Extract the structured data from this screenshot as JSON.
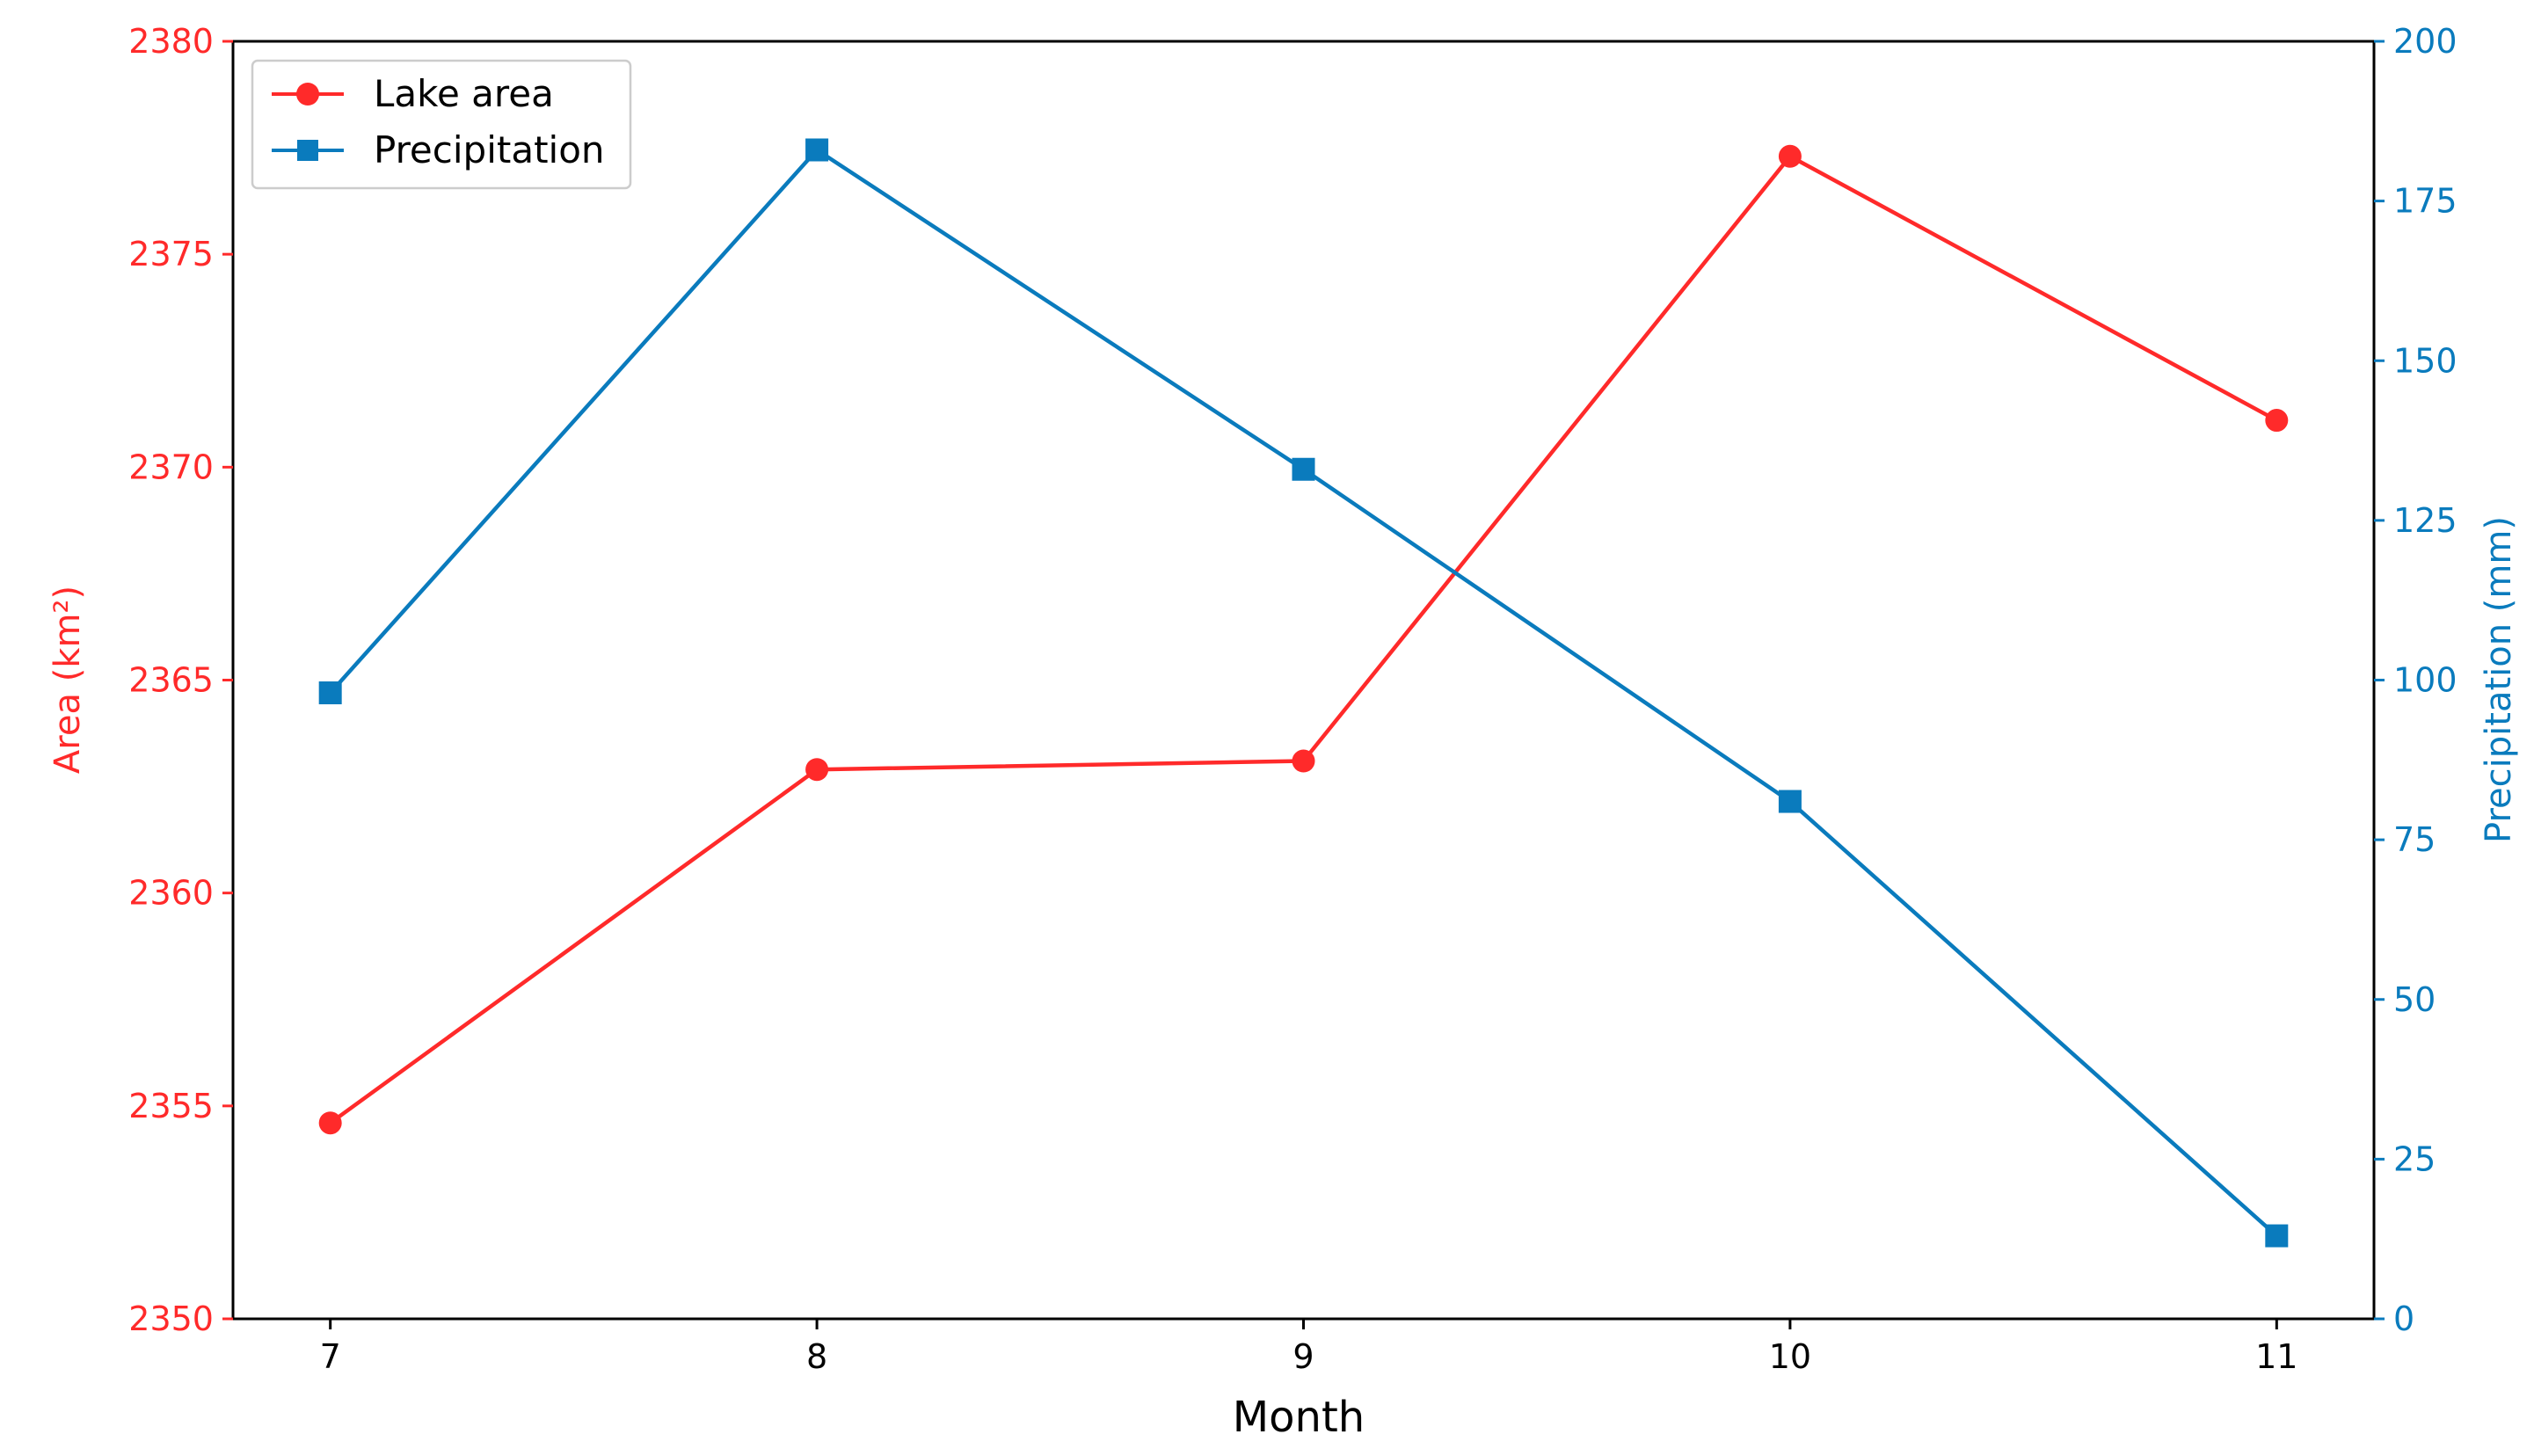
{
  "colors": {
    "lake_area": "#ff2a2a",
    "precipitation": "#0a7bbd",
    "axis": "#000000",
    "legend_border": "#cccccc"
  },
  "chart_data": {
    "type": "line",
    "x": [
      7,
      8,
      9,
      10,
      11
    ],
    "xlabel": "Month",
    "xticks": [
      "7",
      "8",
      "9",
      "10",
      "11"
    ],
    "xlim": [
      6.8,
      11.2
    ],
    "series": [
      {
        "name": "Lake area",
        "axis": "left",
        "marker": "circle",
        "values": [
          2354.6,
          2362.9,
          2363.1,
          2377.3,
          2371.1
        ]
      },
      {
        "name": "Precipitation",
        "axis": "right",
        "marker": "square",
        "values": [
          98,
          183,
          133,
          81,
          13
        ]
      }
    ],
    "ylabel_left": "Area (km²)",
    "ylim_left": [
      2350,
      2380
    ],
    "yticks_left": [
      "2350",
      "2355",
      "2360",
      "2365",
      "2370",
      "2375",
      "2380"
    ],
    "ylabel_right": "Precipitation (mm)",
    "ylim_right": [
      0,
      200
    ],
    "yticks_right": [
      "0",
      "25",
      "50",
      "75",
      "100",
      "125",
      "150",
      "175",
      "200"
    ],
    "legend": "top-left",
    "grid": false
  }
}
